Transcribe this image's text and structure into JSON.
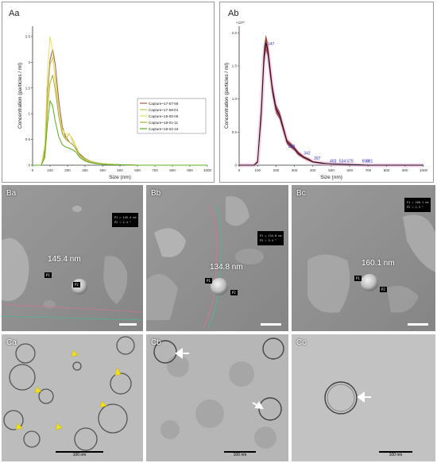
{
  "panels": {
    "aa": {
      "label": "Aa"
    },
    "ab": {
      "label": "Ab"
    },
    "ba": {
      "label": "Ba",
      "size_label": "145.4 nm",
      "info_lines": [
        "P1 = 145.4 nm",
        "P2 = 2.4 °"
      ],
      "tags": [
        "P1",
        "P2"
      ]
    },
    "bb": {
      "label": "Bb",
      "size_label": "134.8 nm",
      "info_lines": [
        "P1 = 134.8 nm",
        "P2 = 3.4 °"
      ],
      "tags": [
        "P1",
        "P2"
      ]
    },
    "bc": {
      "label": "Bc",
      "size_label": "160.1 nm",
      "info_lines": [
        "P1 = 160.1 nm",
        "P2 = 2.3 °"
      ],
      "tags": [
        "P1",
        "P2"
      ]
    },
    "ca": {
      "label": "Ca",
      "scale_label": "100 nm"
    },
    "cb": {
      "label": "Cb",
      "scale_label": "100 nm"
    },
    "cc": {
      "label": "Cc",
      "scale_label": "100 nm"
    }
  },
  "chart_data": [
    {
      "type": "line",
      "panel": "Aa",
      "xlabel": "Size (nm)",
      "ylabel": "Concentration (particles / ml)",
      "xlim": [
        0,
        1000
      ],
      "ylim": [
        0,
        2.7
      ],
      "xticks": [
        0,
        100,
        200,
        300,
        400,
        500,
        600,
        700,
        800,
        900,
        1000
      ],
      "yticks": [
        0,
        0.5,
        1,
        1.5,
        2,
        2.5
      ],
      "ytick_labels": [
        "0",
        "0.5",
        "1",
        "1.5",
        "2",
        "2.5"
      ],
      "legend_position": "right",
      "grid": false,
      "series": [
        {
          "name": "Capture~17-57-56",
          "color": "#a05a4a",
          "x": [
            0,
            50,
            70,
            85,
            100,
            115,
            130,
            150,
            170,
            190,
            210,
            230,
            250,
            270,
            300,
            330,
            360,
            400,
            450,
            500,
            600,
            700,
            800,
            900,
            1000
          ],
          "y": [
            0,
            0,
            0.3,
            1.4,
            2.05,
            2.25,
            1.95,
            1.25,
            0.75,
            0.55,
            0.45,
            0.4,
            0.32,
            0.22,
            0.13,
            0.08,
            0.05,
            0.03,
            0.02,
            0.01,
            0,
            0,
            0,
            0,
            0
          ]
        },
        {
          "name": "Capture~17-59-01",
          "color": "#c9c050",
          "x": [
            0,
            50,
            70,
            85,
            100,
            115,
            130,
            150,
            170,
            190,
            210,
            230,
            250,
            270,
            300,
            330,
            360,
            400,
            450,
            500,
            600,
            700,
            800,
            900,
            1000
          ],
          "y": [
            0,
            0,
            0.25,
            1.3,
            1.95,
            2.1,
            1.7,
            1.05,
            0.65,
            0.52,
            0.6,
            0.5,
            0.35,
            0.2,
            0.12,
            0.08,
            0.05,
            0.03,
            0.02,
            0.01,
            0,
            0,
            0,
            0,
            0
          ]
        },
        {
          "name": "Capture~18-00-06",
          "color": "#e8e060",
          "x": [
            0,
            50,
            70,
            85,
            100,
            115,
            130,
            150,
            170,
            190,
            210,
            230,
            250,
            270,
            300,
            330,
            360,
            400,
            450,
            500,
            600,
            700,
            800,
            900,
            1000
          ],
          "y": [
            0,
            0,
            0.4,
            1.8,
            2.5,
            2.2,
            1.6,
            1.0,
            0.7,
            0.6,
            0.62,
            0.45,
            0.3,
            0.18,
            0.1,
            0.06,
            0.04,
            0.03,
            0.02,
            0.01,
            0,
            0,
            0,
            0,
            0
          ]
        },
        {
          "name": "Capture~18-01-11",
          "color": "#a8b030",
          "x": [
            0,
            50,
            70,
            85,
            100,
            115,
            130,
            150,
            170,
            190,
            210,
            230,
            250,
            270,
            300,
            330,
            360,
            400,
            450,
            500,
            600,
            700,
            800,
            900,
            1000
          ],
          "y": [
            0,
            0,
            0.2,
            1.1,
            1.6,
            1.75,
            1.45,
            0.95,
            0.6,
            0.5,
            0.45,
            0.4,
            0.3,
            0.18,
            0.1,
            0.06,
            0.04,
            0.02,
            0.01,
            0.01,
            0,
            0,
            0,
            0,
            0
          ]
        },
        {
          "name": "Capture~18-02-16",
          "color": "#58b020",
          "x": [
            0,
            50,
            70,
            85,
            100,
            115,
            130,
            150,
            170,
            190,
            210,
            230,
            250,
            270,
            300,
            330,
            360,
            400,
            450,
            500,
            600,
            700,
            800,
            900,
            1000
          ],
          "y": [
            0,
            0,
            0.15,
            0.8,
            1.25,
            1.15,
            0.85,
            0.55,
            0.4,
            0.35,
            0.33,
            0.3,
            0.25,
            0.15,
            0.08,
            0.05,
            0.03,
            0.02,
            0.01,
            0.01,
            0,
            0,
            0,
            0,
            0
          ]
        }
      ]
    },
    {
      "type": "line",
      "panel": "Ab",
      "xlabel": "Size (nm)",
      "ylabel": "Concentration (particles / ml)",
      "y_multiplier": "×10¹⁰",
      "xlim": [
        0,
        1000
      ],
      "ylim": [
        0,
        2.1
      ],
      "xticks": [
        0,
        100,
        200,
        300,
        400,
        500,
        600,
        700,
        800,
        900,
        1000
      ],
      "yticks": [
        0,
        0.5,
        1,
        1.5,
        2
      ],
      "ytick_labels": [
        "0",
        "0.5",
        "1.0",
        "1.5",
        "2.0"
      ],
      "grid": false,
      "series": [
        {
          "name": "mean",
          "color": "#111111",
          "band_color": "#8b1a10",
          "x": [
            0,
            80,
            100,
            120,
            135,
            145,
            155,
            165,
            180,
            200,
            220,
            240,
            260,
            280,
            300,
            320,
            350,
            380,
            400,
            450,
            500,
            600,
            700,
            800,
            900,
            1000
          ],
          "y": [
            0,
            0,
            0.05,
            0.8,
            1.65,
            1.85,
            1.75,
            1.5,
            1.15,
            0.85,
            0.75,
            0.55,
            0.35,
            0.3,
            0.25,
            0.18,
            0.12,
            0.08,
            0.05,
            0.03,
            0.02,
            0.01,
            0,
            0,
            0,
            0
          ],
          "err": [
            0,
            0,
            0.02,
            0.15,
            0.15,
            0.12,
            0.1,
            0.1,
            0.08,
            0.07,
            0.06,
            0.05,
            0.04,
            0.04,
            0.03,
            0.03,
            0.02,
            0.02,
            0.01,
            0.01,
            0,
            0,
            0,
            0,
            0,
            0
          ]
        }
      ],
      "peak_labels": [
        {
          "x": 147,
          "y": 1.8,
          "text": "147"
        },
        {
          "x": 258,
          "y": 0.25,
          "text": "258"
        },
        {
          "x": 342,
          "y": 0.15,
          "text": "342"
        },
        {
          "x": 397,
          "y": 0.07,
          "text": "397"
        },
        {
          "x": 483,
          "y": 0.03,
          "text": "483"
        },
        {
          "x": 534,
          "y": 0.03,
          "text": "534"
        },
        {
          "x": 575,
          "y": 0.03,
          "text": "575"
        },
        {
          "x": 658,
          "y": 0.03,
          "text": "658"
        },
        {
          "x": 681,
          "y": 0.03,
          "text": "681"
        }
      ]
    }
  ]
}
